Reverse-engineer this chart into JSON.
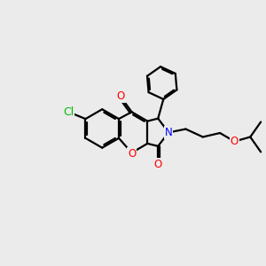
{
  "background_color": "#ebebeb",
  "bond_color": "#000000",
  "bond_width": 1.6,
  "atom_colors": {
    "O": "#ff0000",
    "N": "#0000ff",
    "Cl": "#00bb00",
    "C": "#000000"
  },
  "font_size": 8.5,
  "figure_size": [
    3.0,
    3.0
  ],
  "dpi": 100
}
